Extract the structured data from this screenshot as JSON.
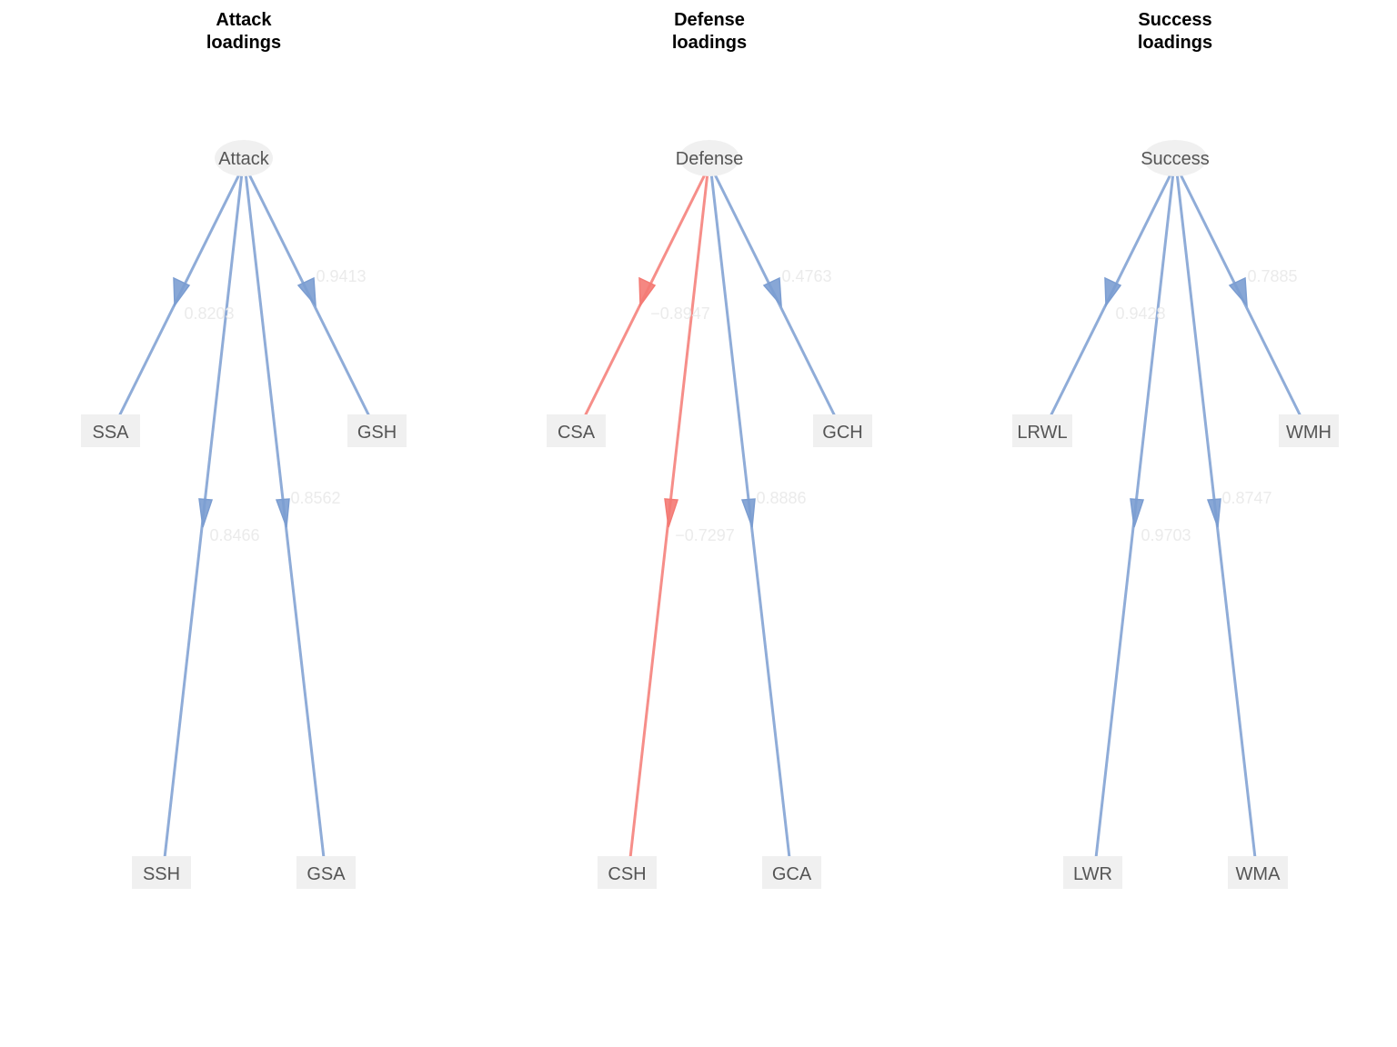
{
  "colors": {
    "positive": "#7B9DD1",
    "negative": "#F47A74",
    "node_fill": "#F0F0F0",
    "node_text": "#555555",
    "edge_label_text": "#EBEBEB",
    "title_text": "#000000"
  },
  "panels": [
    {
      "title_line1": "Attack",
      "title_line2": "loadings",
      "latent": "Attack",
      "indicators": [
        {
          "name": "SSA",
          "loading": "0.8203",
          "sign": "positive"
        },
        {
          "name": "SSH",
          "loading": "0.8466",
          "sign": "positive"
        },
        {
          "name": "GSA",
          "loading": "0.8562",
          "sign": "positive"
        },
        {
          "name": "GSH",
          "loading": "0.9413",
          "sign": "positive"
        }
      ]
    },
    {
      "title_line1": "Defense",
      "title_line2": "loadings",
      "latent": "Defense",
      "indicators": [
        {
          "name": "CSA",
          "loading": "−0.8947",
          "sign": "negative"
        },
        {
          "name": "CSH",
          "loading": "−0.7297",
          "sign": "negative"
        },
        {
          "name": "GCA",
          "loading": "0.8886",
          "sign": "positive"
        },
        {
          "name": "GCH",
          "loading": "0.4763",
          "sign": "positive"
        }
      ]
    },
    {
      "title_line1": "Success",
      "title_line2": "loadings",
      "latent": "Success",
      "indicators": [
        {
          "name": "LRWL",
          "loading": "0.9428",
          "sign": "positive"
        },
        {
          "name": "LWR",
          "loading": "0.9703",
          "sign": "positive"
        },
        {
          "name": "WMA",
          "loading": "0.8747",
          "sign": "positive"
        },
        {
          "name": "WMH",
          "loading": "0.7885",
          "sign": "positive"
        }
      ]
    }
  ]
}
